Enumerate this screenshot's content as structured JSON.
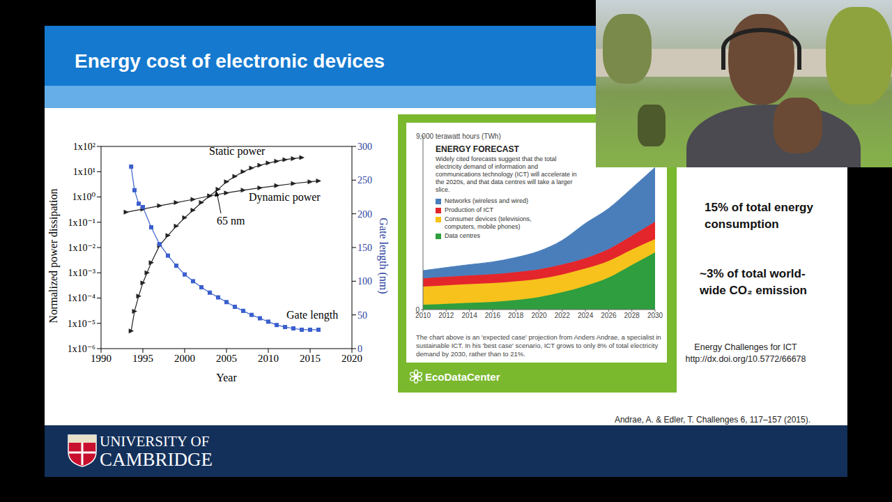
{
  "slide": {
    "title": "Energy cost of electronic devices",
    "notes": [
      "15% of total energy consumption",
      "~3% of total world-wide CO₂ emission"
    ],
    "reference": [
      "Energy Challenges for ICT",
      "http://dx.doi.org/10.5772/66678"
    ],
    "citation": "Andrae, A. & Edler, T. Challenges 6, 117–157 (2015).",
    "logo": [
      "UNIVERSITY OF",
      "CAMBRIDGE"
    ]
  },
  "chart_data": [
    {
      "type": "line",
      "log": "y",
      "x_label": "Year",
      "y_label": "Normalized power dissipation",
      "y2_label": "Gate length (nm)",
      "xlim": [
        1990,
        2020
      ],
      "xticks": [
        1990,
        1995,
        2000,
        2005,
        2010,
        2015,
        2020
      ],
      "ylim": [
        1e-06,
        100
      ],
      "yticks": [
        {
          "value": 1e-06,
          "label": "1x10⁻⁶"
        },
        {
          "value": 1e-05,
          "label": "1x10⁻⁵"
        },
        {
          "value": 0.0001,
          "label": "1x10⁻⁴"
        },
        {
          "value": 0.001,
          "label": "1x10⁻³"
        },
        {
          "value": 0.01,
          "label": "1x10⁻²"
        },
        {
          "value": 0.1,
          "label": "1x10⁻¹"
        },
        {
          "value": 1,
          "label": "1x10⁰"
        },
        {
          "value": 10,
          "label": "1x10¹"
        },
        {
          "value": 100,
          "label": "1x10²"
        }
      ],
      "y2lim": [
        0,
        300
      ],
      "y2ticks": [
        0,
        50,
        100,
        150,
        200,
        250,
        300
      ],
      "annotations": [
        "65 nm"
      ],
      "series": [
        {
          "name": "Static power",
          "color": "#222222",
          "marker": "triangle",
          "x": [
            1993.6,
            1994,
            1994.5,
            1995,
            1995.5,
            1996,
            1997,
            1998,
            1999,
            2000,
            2001,
            2002,
            2003,
            2004,
            2005,
            2006,
            2007,
            2008,
            2009,
            2010,
            2011,
            2012,
            2013,
            2014
          ],
          "values": [
            5e-06,
            3e-05,
            0.00012,
            0.0004,
            0.001,
            0.0025,
            0.012,
            0.03,
            0.07,
            0.15,
            0.3,
            0.6,
            1.1,
            2,
            4,
            6.5,
            10,
            14,
            18,
            22,
            26,
            30,
            33,
            36
          ]
        },
        {
          "name": "Dynamic power",
          "color": "#222222",
          "marker": "triangle",
          "x": [
            1993,
            1995,
            1997,
            1999,
            2001,
            2003,
            2005,
            2007,
            2009,
            2011,
            2013,
            2015,
            2016
          ],
          "values": [
            0.25,
            0.33,
            0.45,
            0.6,
            0.8,
            1.1,
            1.45,
            1.85,
            2.3,
            2.8,
            3.4,
            4,
            4.3
          ]
        },
        {
          "name": "Gate length",
          "color": "#3a5fcd",
          "marker": "square",
          "axis": "y2",
          "x": [
            1993.6,
            1994,
            1994.5,
            1995,
            1996,
            1997,
            1998,
            1999,
            2000,
            2001,
            2002,
            2003,
            2004,
            2005,
            2006,
            2007,
            2008,
            2009,
            2010,
            2011,
            2012,
            2013,
            2014,
            2015,
            2016
          ],
          "values": [
            270,
            235,
            215,
            210,
            180,
            155,
            138,
            123,
            110,
            100,
            91,
            83,
            76,
            69,
            62,
            56,
            50,
            45,
            40,
            35,
            32,
            30,
            28,
            28,
            28
          ]
        }
      ]
    },
    {
      "type": "area",
      "stacked": true,
      "legend": "upper left",
      "title": "ENERGY FORECAST",
      "subtitle": "Widely cited forecasts suggest that the total electricity demand of information and communications technology (ICT) will accelerate in the 2020s, and that data centres will take a larger slice.",
      "caption": "The chart above is an 'expected case' projection from Anders Andrae, a specialist in sustainable ICT. In his 'best case' scenario, ICT grows to only 8% of total electricity demand by 2030, rather than to 21%.",
      "source": "EcoDataCenter",
      "x": [
        2010,
        2012,
        2014,
        2016,
        2018,
        2020,
        2022,
        2024,
        2026,
        2028,
        2030
      ],
      "xlim": [
        2010,
        2030
      ],
      "xticks": [
        2010,
        2012,
        2014,
        2016,
        2018,
        2020,
        2022,
        2024,
        2026,
        2028,
        2030
      ],
      "ylim": [
        0,
        9000
      ],
      "yticks": [
        0,
        {
          "value": 9000,
          "label": "9,000 terawatt hours (TWh)"
        }
      ],
      "series": [
        {
          "name": "Networks (wireless and wired)",
          "color": "#4a7ebb",
          "values": [
            400,
            480,
            560,
            640,
            760,
            940,
            1250,
            1800,
            2100,
            2460,
            2820
          ]
        },
        {
          "name": "Production of ICT",
          "color": "#e3262b",
          "values": [
            430,
            440,
            450,
            460,
            480,
            500,
            520,
            540,
            620,
            720,
            900
          ]
        },
        {
          "name": "Consumer devices (televisions, computers, mobile phones)",
          "color": "#f7c21b",
          "values": [
            940,
            960,
            970,
            970,
            960,
            940,
            920,
            900,
            860,
            800,
            690
          ]
        },
        {
          "name": "Data centres",
          "color": "#2e9e3e",
          "values": [
            250,
            300,
            350,
            400,
            500,
            650,
            900,
            1230,
            1660,
            2310,
            2960
          ]
        }
      ]
    }
  ]
}
